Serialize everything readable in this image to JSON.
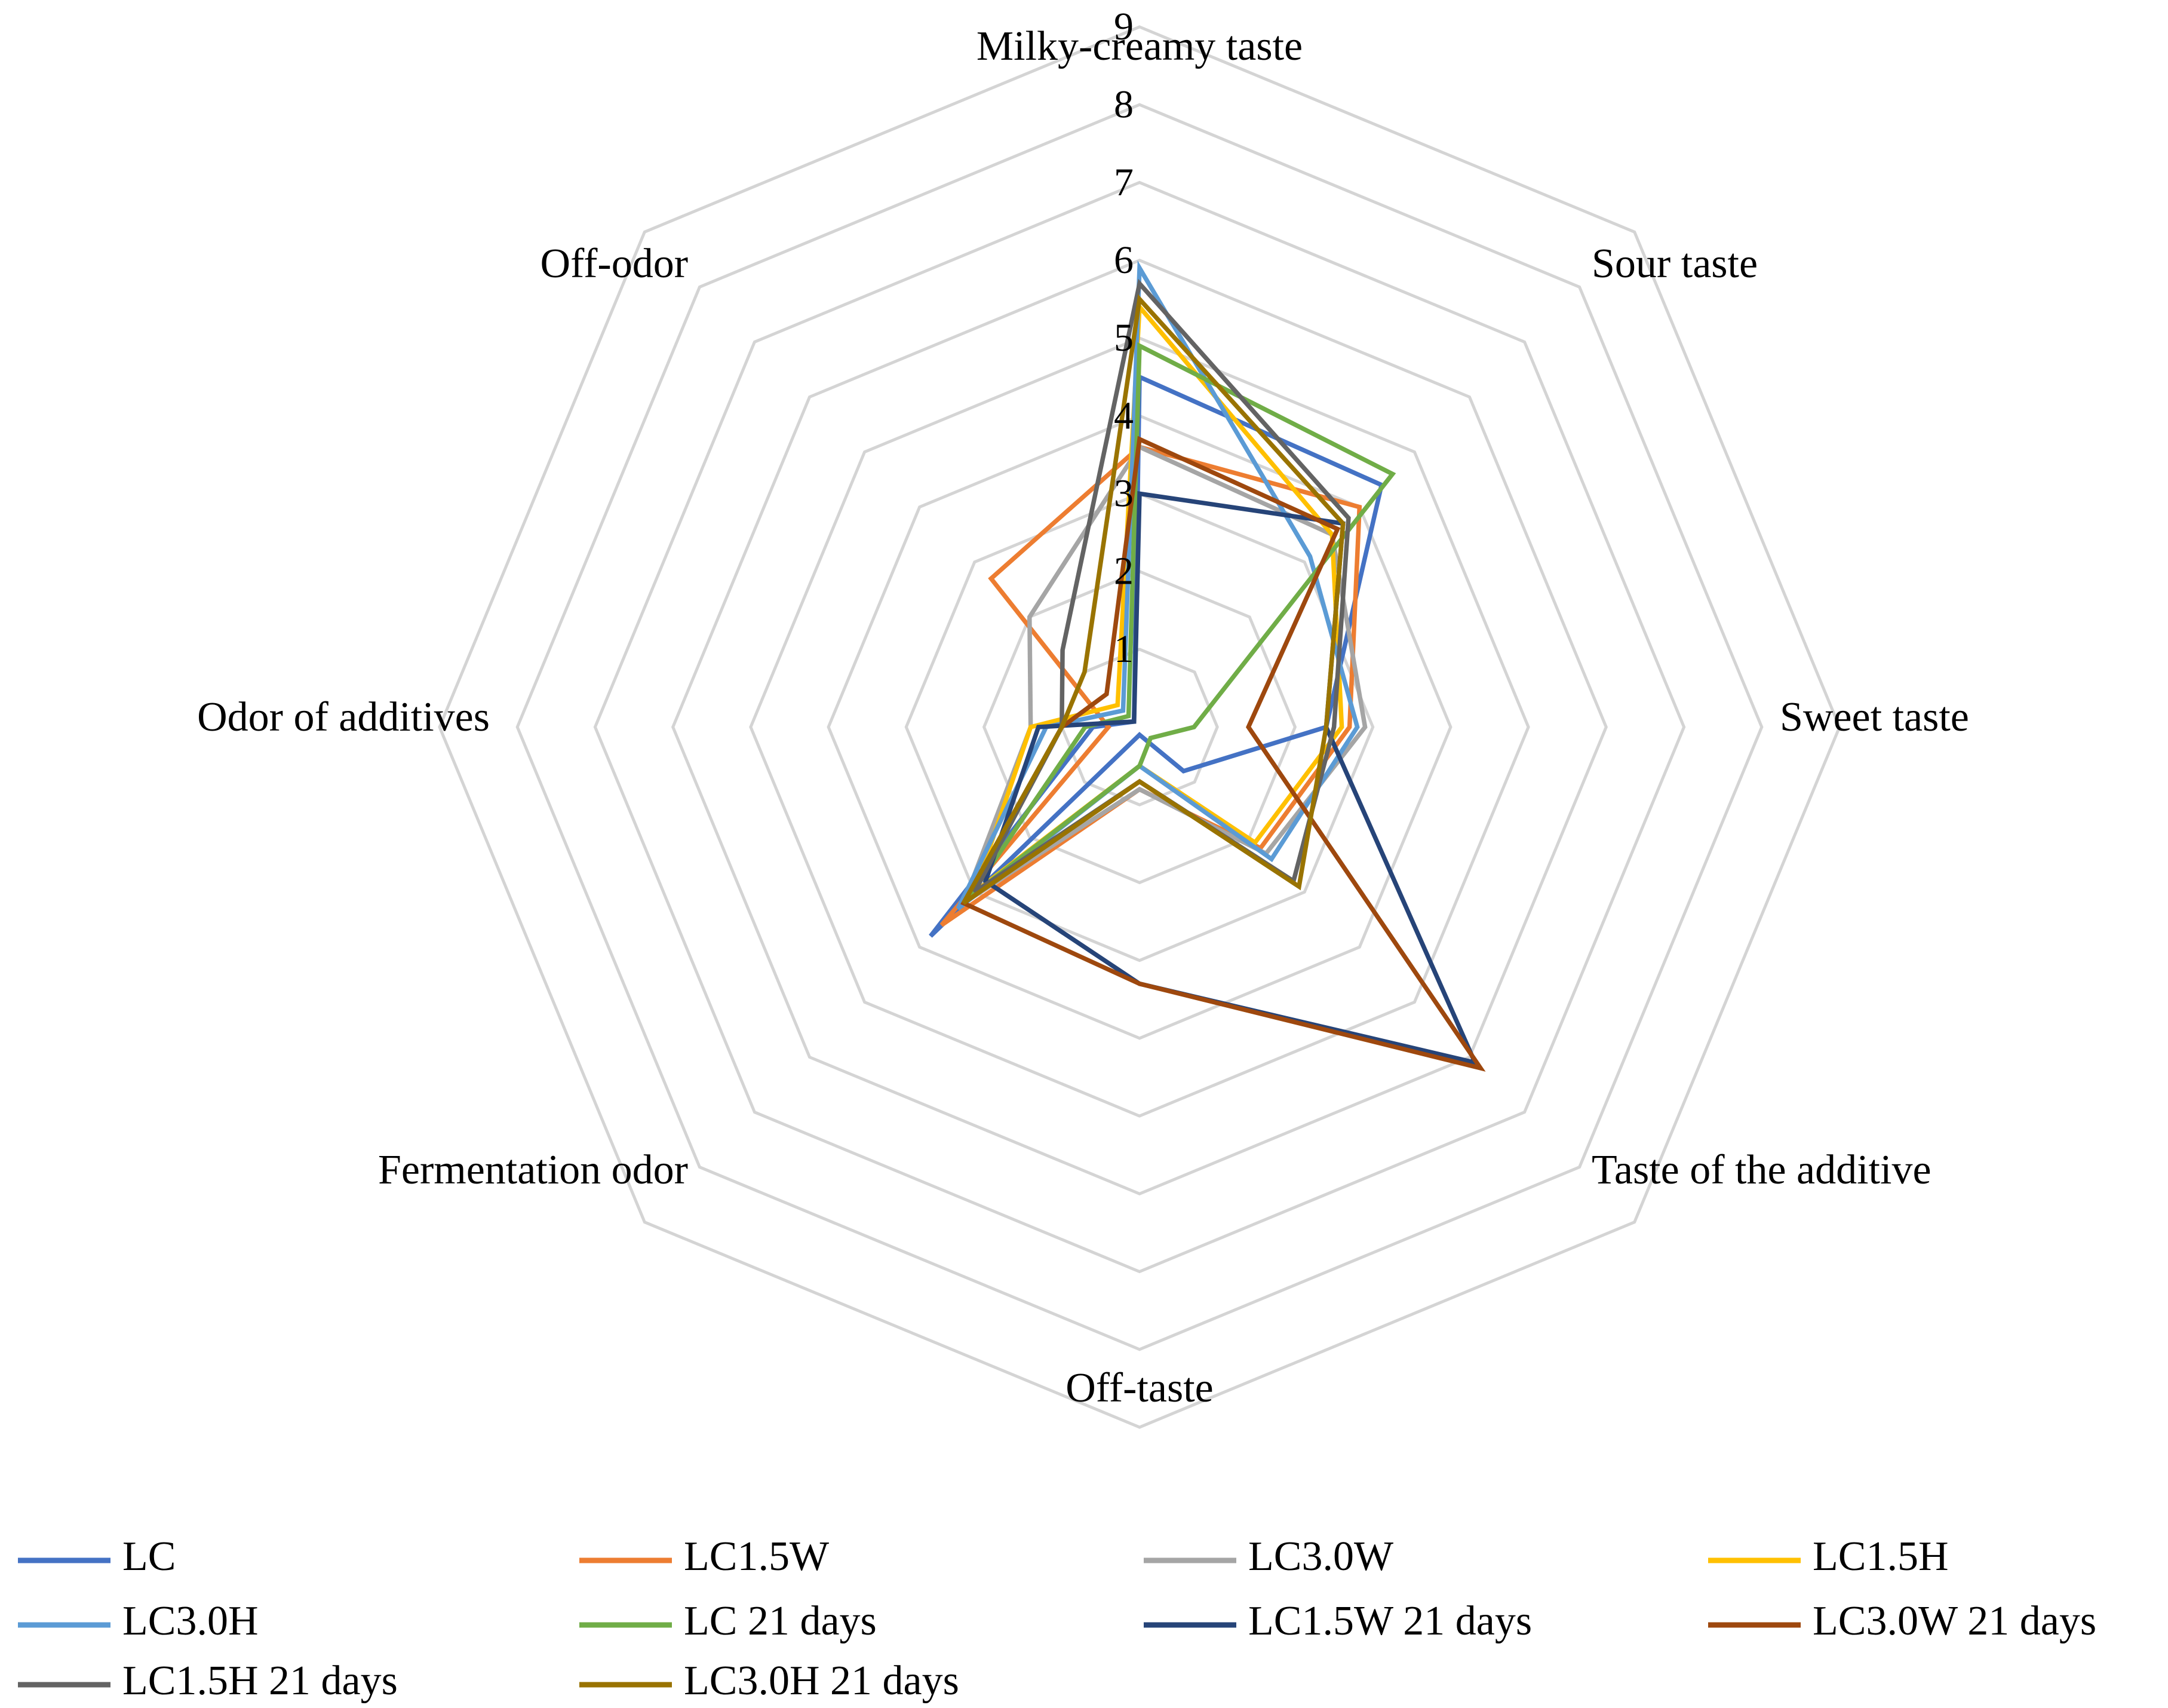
{
  "chart_data": {
    "type": "radar",
    "title": "",
    "axes": [
      "Milky-creamy taste",
      "Sour taste",
      "Sweet taste",
      "Taste of the additive",
      "Off-taste",
      "Fermentation odor",
      "Odor of additives",
      "Off-odor"
    ],
    "rlim": [
      0,
      9
    ],
    "ticks": [
      1,
      2,
      3,
      4,
      5,
      6,
      7,
      8,
      9
    ],
    "grid": true,
    "legend_position": "bottom",
    "series": [
      {
        "name": "LC",
        "color": "#4472C4",
        "values": [
          4.5,
          4.4,
          2.4,
          0.8,
          0.1,
          3.8,
          0.6,
          0.1
        ]
      },
      {
        "name": "LC1.5W",
        "color": "#ED7D31",
        "values": [
          3.6,
          4.0,
          2.7,
          2.2,
          0.8,
          3.6,
          0.4,
          2.7
        ]
      },
      {
        "name": "LC3.0W",
        "color": "#A5A5A5",
        "values": [
          3.6,
          3.5,
          2.9,
          2.3,
          0.8,
          3.2,
          1.4,
          2.0
        ]
      },
      {
        "name": "LC1.5H",
        "color": "#FFC000",
        "values": [
          5.4,
          3.5,
          2.6,
          2.1,
          0.5,
          3.0,
          1.4,
          0.4
        ]
      },
      {
        "name": "LC3.0H",
        "color": "#5B9BD5",
        "values": [
          5.9,
          3.1,
          2.8,
          2.4,
          0.5,
          3.3,
          1.2,
          0.3
        ]
      },
      {
        "name": "LC 21 days",
        "color": "#70AD47",
        "values": [
          4.9,
          4.6,
          0.7,
          0.2,
          0.5,
          3.1,
          0.7,
          0.2
        ]
      },
      {
        "name": "LC1.5W 21 days",
        "color": "#264478",
        "values": [
          3.0,
          3.7,
          2.4,
          6.1,
          3.3,
          2.8,
          1.3,
          0.1
        ]
      },
      {
        "name": "LC3.0W 21 days",
        "color": "#9E480E",
        "values": [
          3.7,
          3.6,
          1.4,
          6.2,
          3.3,
          3.2,
          1.0,
          0.6
        ]
      },
      {
        "name": "LC1.5H 21 days",
        "color": "#636363",
        "values": [
          5.7,
          3.8,
          2.5,
          2.8,
          0.7,
          3.0,
          1.0,
          1.4
        ]
      },
      {
        "name": "LC3.0H 21 days",
        "color": "#997300",
        "values": [
          5.5,
          3.7,
          2.4,
          2.9,
          0.7,
          3.2,
          1.0,
          1.0
        ]
      }
    ]
  }
}
